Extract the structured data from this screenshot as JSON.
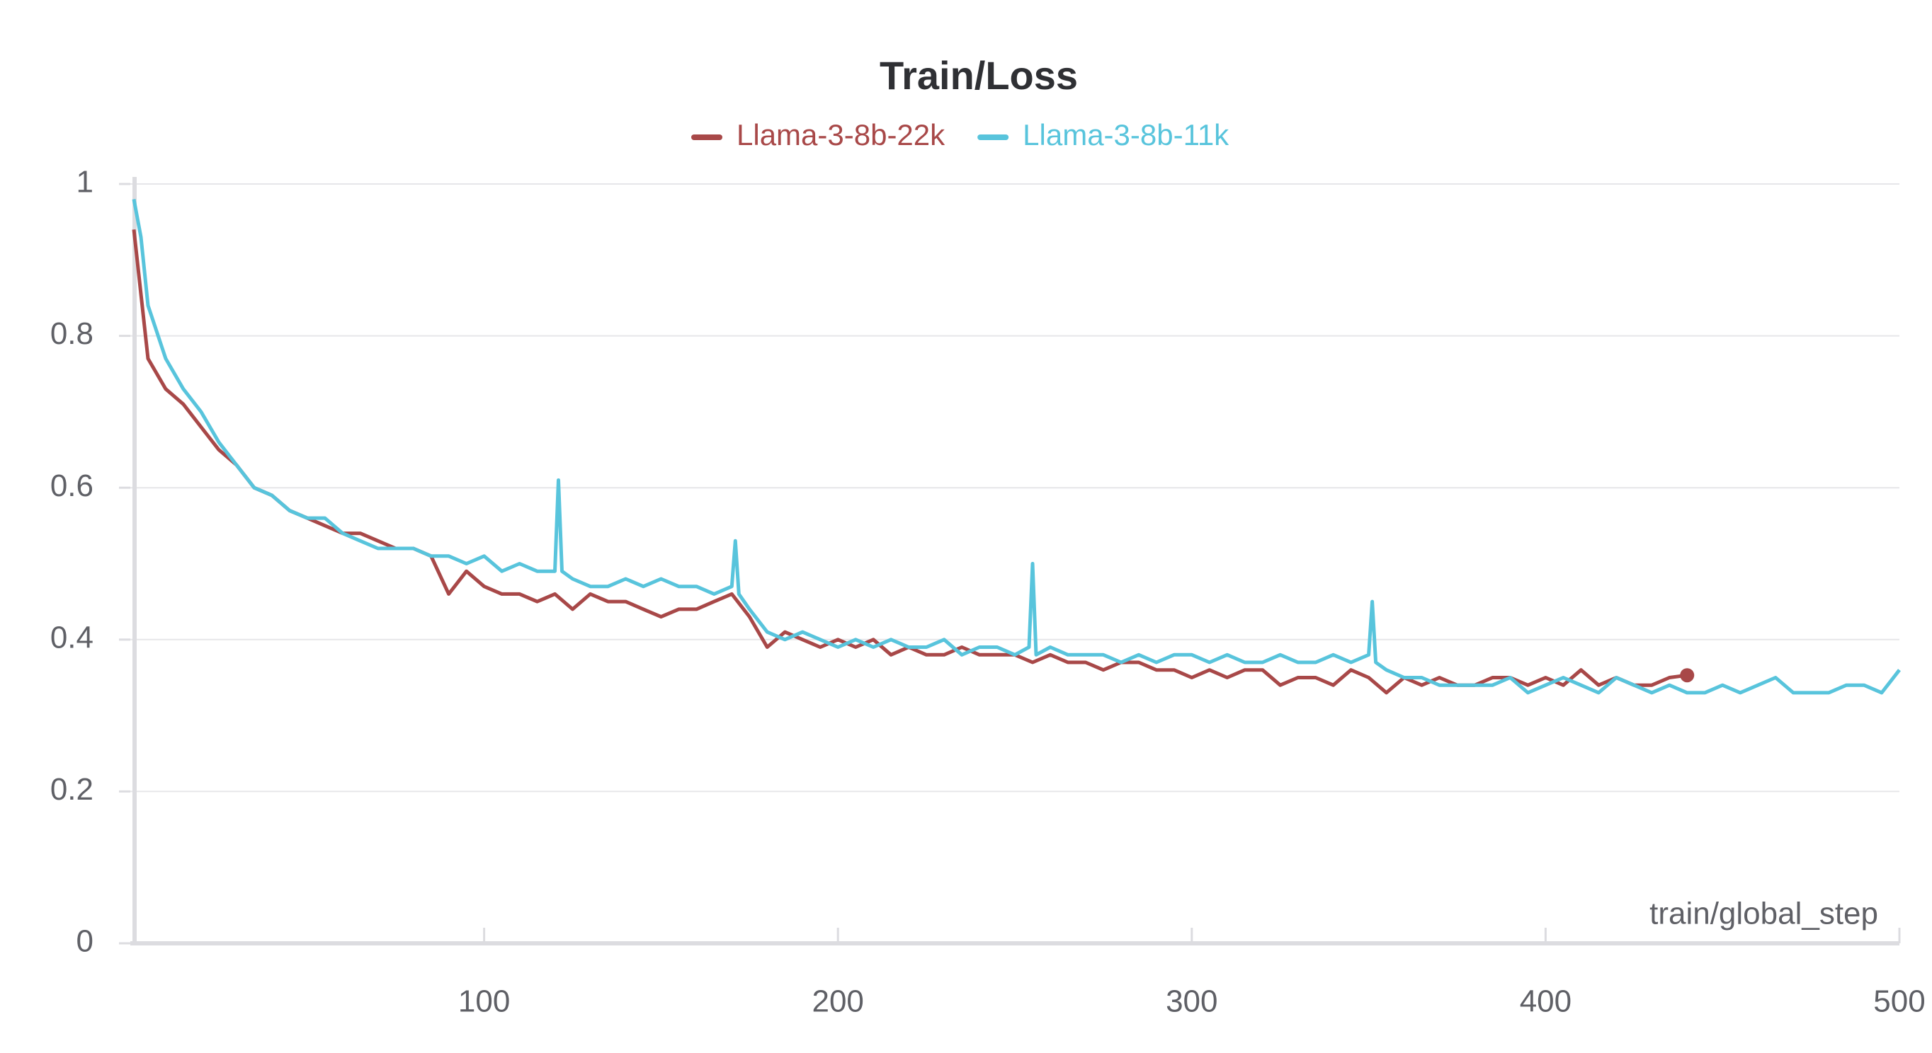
{
  "chart_data": {
    "type": "line",
    "title": "Train/Loss",
    "xlabel": "train/global_step",
    "xlim": [
      0,
      500
    ],
    "ylim": [
      0,
      1
    ],
    "xticks": [
      100,
      200,
      300,
      400,
      500
    ],
    "yticks": [
      0,
      0.2,
      0.4,
      0.6,
      0.8,
      1
    ],
    "grid": true,
    "legend": "top",
    "series": [
      {
        "name": "Llama-3-8b-22k",
        "color": "#a84848",
        "x": [
          1,
          5,
          10,
          15,
          20,
          25,
          30,
          35,
          40,
          45,
          50,
          55,
          60,
          65,
          70,
          75,
          80,
          85,
          90,
          95,
          100,
          105,
          110,
          115,
          120,
          125,
          130,
          135,
          140,
          145,
          150,
          155,
          160,
          165,
          170,
          175,
          180,
          185,
          190,
          195,
          200,
          205,
          210,
          215,
          220,
          225,
          230,
          235,
          240,
          245,
          250,
          255,
          260,
          265,
          270,
          275,
          280,
          285,
          290,
          295,
          300,
          305,
          310,
          315,
          320,
          325,
          330,
          335,
          340,
          345,
          350,
          355,
          360,
          365,
          370,
          375,
          380,
          385,
          390,
          395,
          400,
          405,
          410,
          415,
          420,
          425,
          430,
          435,
          440
        ],
        "values": [
          0.94,
          0.77,
          0.73,
          0.71,
          0.68,
          0.65,
          0.63,
          0.6,
          0.59,
          0.57,
          0.56,
          0.55,
          0.54,
          0.54,
          0.53,
          0.52,
          0.52,
          0.51,
          0.46,
          0.49,
          0.47,
          0.46,
          0.46,
          0.45,
          0.46,
          0.44,
          0.46,
          0.45,
          0.45,
          0.44,
          0.43,
          0.44,
          0.44,
          0.45,
          0.46,
          0.43,
          0.39,
          0.41,
          0.4,
          0.39,
          0.4,
          0.39,
          0.4,
          0.38,
          0.39,
          0.38,
          0.38,
          0.39,
          0.38,
          0.38,
          0.38,
          0.37,
          0.38,
          0.37,
          0.37,
          0.36,
          0.37,
          0.37,
          0.36,
          0.36,
          0.35,
          0.36,
          0.35,
          0.36,
          0.36,
          0.34,
          0.35,
          0.35,
          0.34,
          0.36,
          0.35,
          0.33,
          0.35,
          0.34,
          0.35,
          0.34,
          0.34,
          0.35,
          0.35,
          0.34,
          0.35,
          0.34,
          0.36,
          0.34,
          0.35,
          0.34,
          0.34,
          0.35,
          0.353
        ]
      },
      {
        "name": "Llama-3-8b-11k",
        "color": "#58c4dc",
        "x": [
          1,
          3,
          5,
          10,
          15,
          20,
          25,
          30,
          35,
          40,
          45,
          50,
          55,
          60,
          65,
          70,
          75,
          80,
          85,
          90,
          95,
          100,
          105,
          110,
          115,
          120,
          121,
          122,
          125,
          130,
          135,
          140,
          145,
          150,
          155,
          160,
          165,
          170,
          171,
          172,
          175,
          180,
          185,
          190,
          195,
          200,
          205,
          210,
          215,
          220,
          225,
          230,
          235,
          240,
          245,
          250,
          254,
          255,
          256,
          260,
          265,
          270,
          275,
          280,
          285,
          290,
          295,
          300,
          305,
          310,
          315,
          320,
          325,
          330,
          335,
          340,
          345,
          350,
          351,
          352,
          355,
          360,
          365,
          370,
          375,
          380,
          385,
          390,
          395,
          400,
          405,
          410,
          415,
          420,
          425,
          430,
          435,
          440,
          445,
          450,
          455,
          460,
          465,
          470,
          475,
          480,
          485,
          490,
          495,
          500
        ],
        "values": [
          0.98,
          0.93,
          0.84,
          0.77,
          0.73,
          0.7,
          0.66,
          0.63,
          0.6,
          0.59,
          0.57,
          0.56,
          0.56,
          0.54,
          0.53,
          0.52,
          0.52,
          0.52,
          0.51,
          0.51,
          0.5,
          0.51,
          0.49,
          0.5,
          0.49,
          0.49,
          0.61,
          0.49,
          0.48,
          0.47,
          0.47,
          0.48,
          0.47,
          0.48,
          0.47,
          0.47,
          0.46,
          0.47,
          0.53,
          0.46,
          0.44,
          0.41,
          0.4,
          0.41,
          0.4,
          0.39,
          0.4,
          0.39,
          0.4,
          0.39,
          0.39,
          0.4,
          0.38,
          0.39,
          0.39,
          0.38,
          0.39,
          0.5,
          0.38,
          0.39,
          0.38,
          0.38,
          0.38,
          0.37,
          0.38,
          0.37,
          0.38,
          0.38,
          0.37,
          0.38,
          0.37,
          0.37,
          0.38,
          0.37,
          0.37,
          0.38,
          0.37,
          0.38,
          0.45,
          0.37,
          0.36,
          0.35,
          0.35,
          0.34,
          0.34,
          0.34,
          0.34,
          0.35,
          0.33,
          0.34,
          0.35,
          0.34,
          0.33,
          0.35,
          0.34,
          0.33,
          0.34,
          0.33,
          0.33,
          0.34,
          0.33,
          0.34,
          0.35,
          0.33,
          0.33,
          0.33,
          0.34,
          0.34,
          0.33,
          0.36
        ]
      }
    ]
  }
}
